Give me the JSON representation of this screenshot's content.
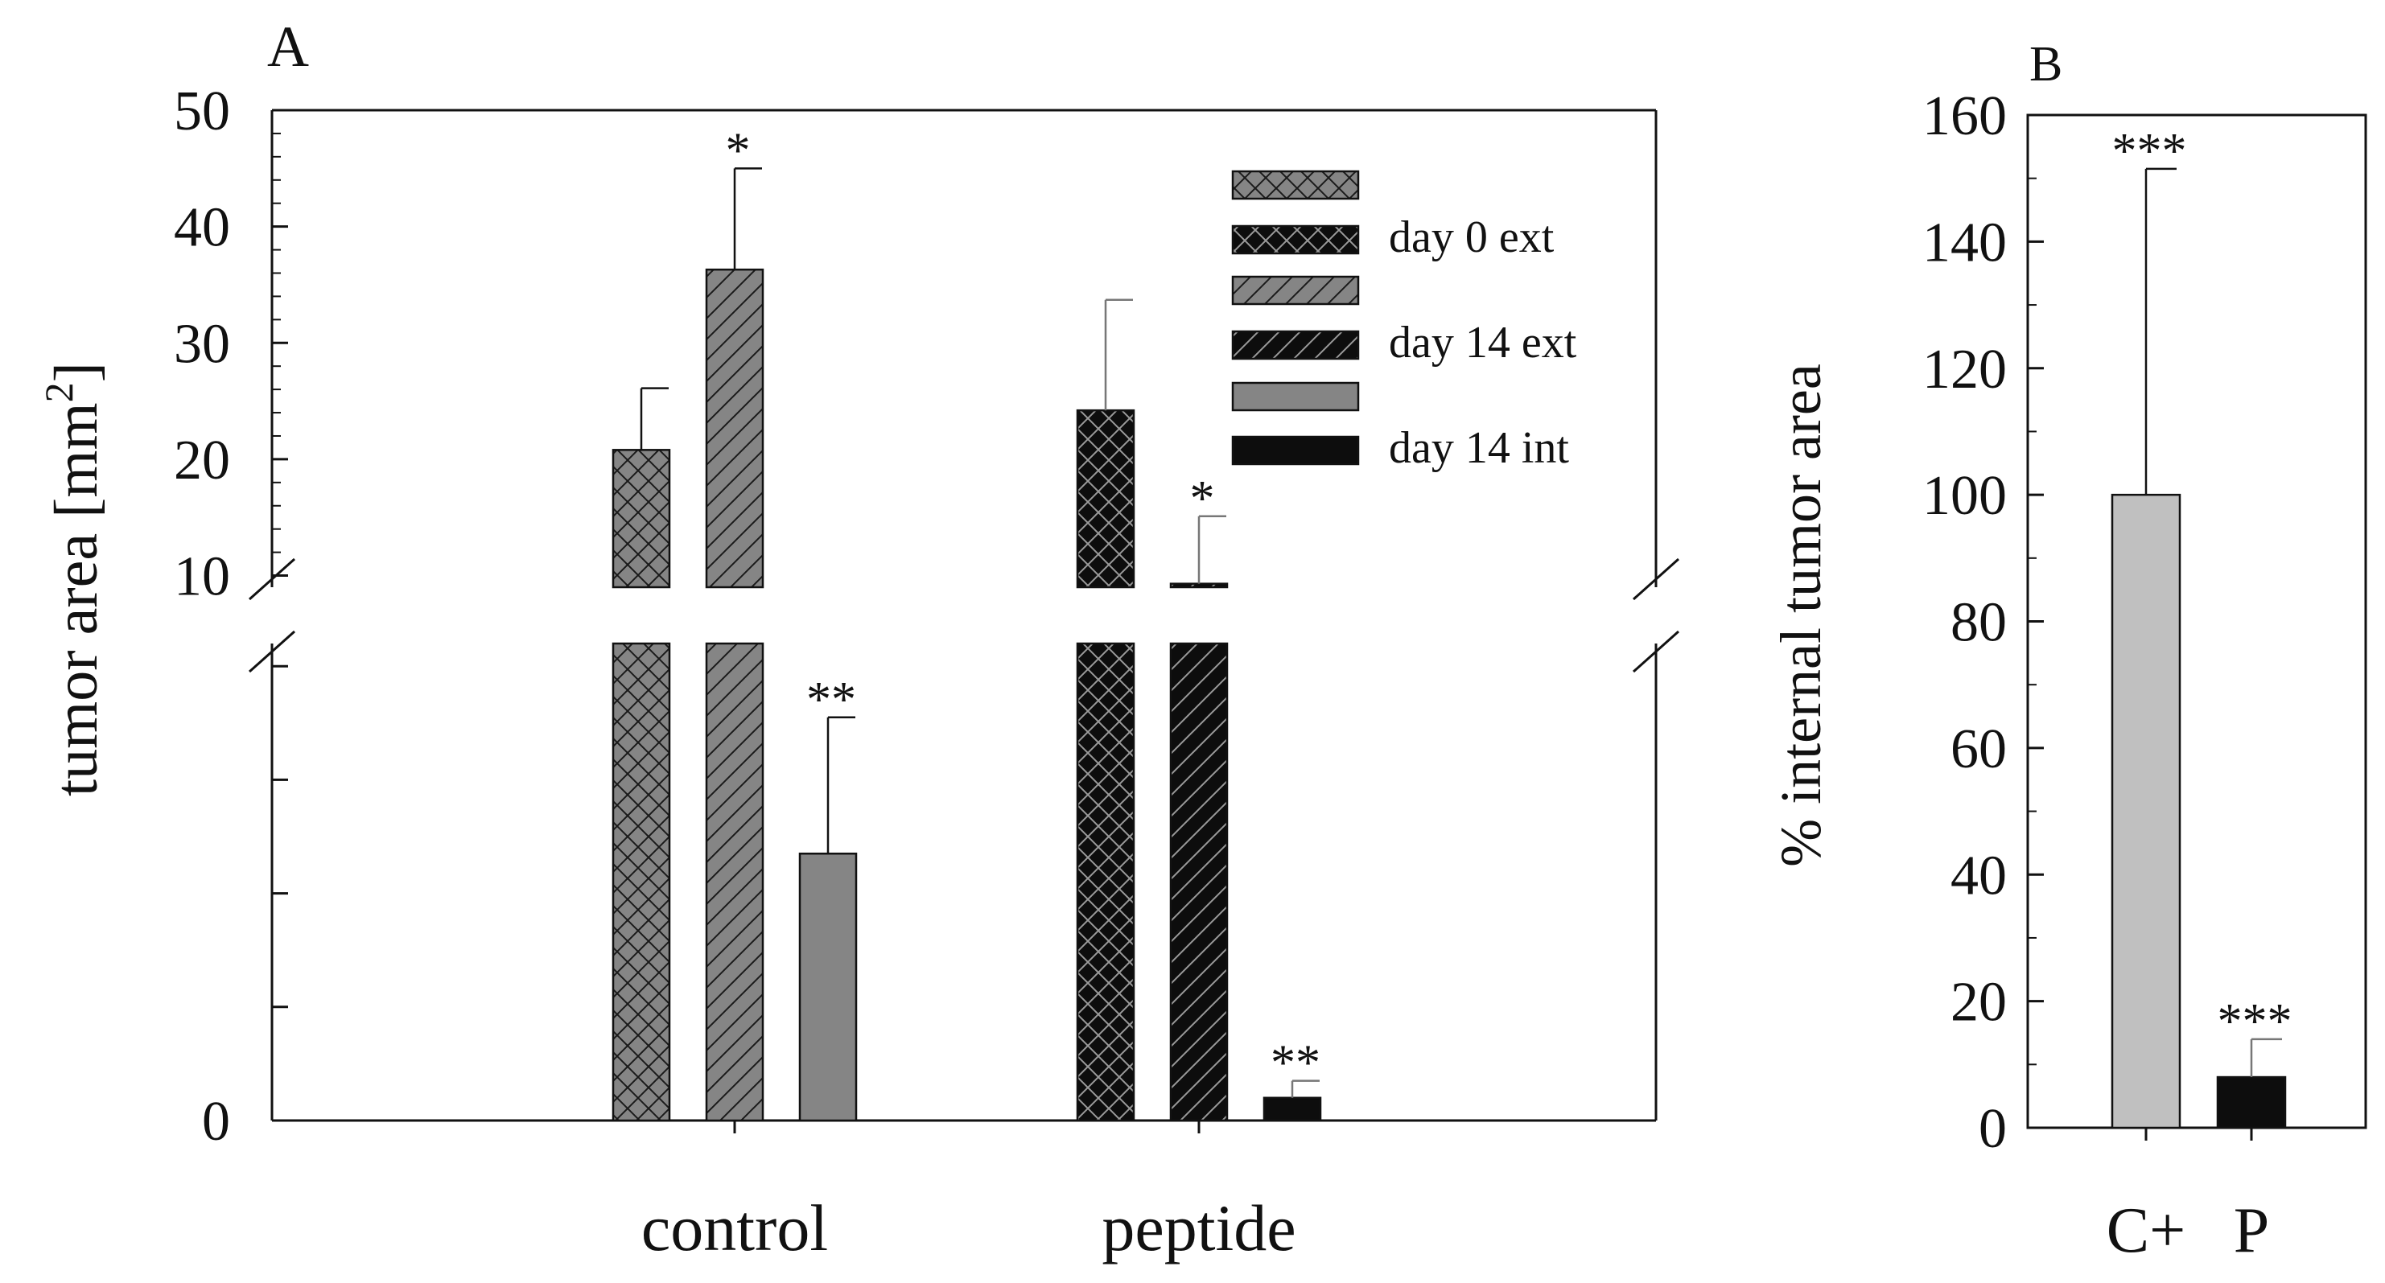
{
  "chart_data": [
    {
      "panel": "A",
      "type": "bar",
      "categories": [
        "control",
        "peptide"
      ],
      "ylabel_main": "tumor area [mm",
      "ylabel_sup": "2",
      "ylabel_end": "]",
      "xlabel": "",
      "y_axis_break": true,
      "upper_segment_ylim": [
        9,
        50
      ],
      "upper_segment_ticks": [
        "10",
        "20",
        "30",
        "40",
        "50"
      ],
      "lower_segment_ylim": [
        0,
        4.2
      ],
      "lower_segment_ticks": [
        "0"
      ],
      "series": [
        {
          "name": "day 0 ext",
          "legend_label": "day   0 ext",
          "hatch": "crosshatch",
          "values": [
            20.8,
            24.2
          ],
          "errors": [
            5.3,
            9.5
          ],
          "annotations": [
            "",
            ""
          ]
        },
        {
          "name": "day 14 ext",
          "legend_label": "day 14 ext",
          "hatch": "diagonal",
          "values": [
            36.3,
            9.3
          ],
          "errors": [
            8.7,
            5.8
          ],
          "annotations": [
            "*",
            "*"
          ]
        },
        {
          "name": "day 14 int",
          "legend_label": "day 14 int",
          "hatch": "solid",
          "values": [
            2.35,
            0.2
          ],
          "errors": [
            1.2,
            0.15
          ],
          "annotations": [
            "**",
            "**"
          ]
        }
      ],
      "group_colors": {
        "control": "#858585",
        "peptide": "#0d0d0d"
      },
      "legend_position": "top-right"
    },
    {
      "panel": "B",
      "type": "bar",
      "categories": [
        "C+",
        "P"
      ],
      "values": [
        100,
        8
      ],
      "errors": [
        51.5,
        6
      ],
      "annotations": [
        "***",
        "***"
      ],
      "colors": [
        "#c0c0c0",
        "#0d0d0d"
      ],
      "ylabel": "% internal tumor area",
      "xlabel": "",
      "ylim": [
        0,
        160
      ],
      "ticks": [
        "0",
        "20",
        "40",
        "60",
        "80",
        "100",
        "120",
        "140",
        "160"
      ]
    }
  ]
}
